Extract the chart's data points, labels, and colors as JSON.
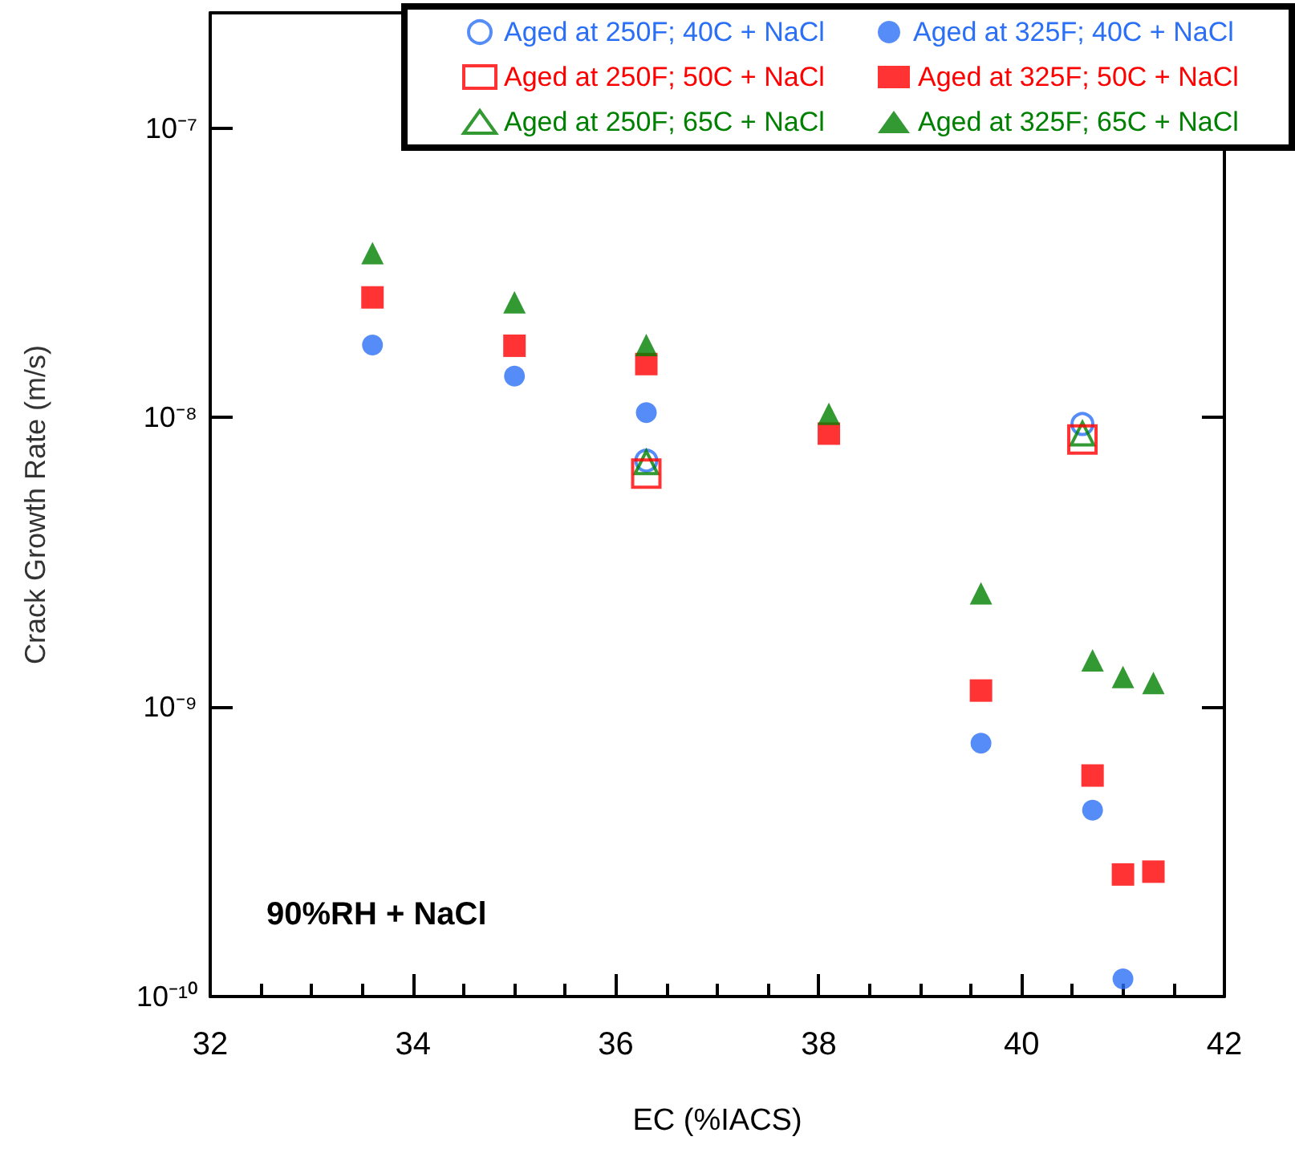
{
  "chart_data": {
    "type": "scatter",
    "xlabel": "EC (%IACS)",
    "ylabel": "Crack Growth Rate (m/s)",
    "annotations": [
      "90%RH + NaCl"
    ],
    "xlim": [
      32,
      42
    ],
    "xticks": [
      32,
      34,
      36,
      38,
      40,
      42
    ],
    "ylim": [
      1e-10,
      2.5e-07
    ],
    "yticks": [
      {
        "value": 1e-10,
        "label": "10⁻¹⁰"
      },
      {
        "value": 1e-09,
        "label": "10⁻⁹"
      },
      {
        "value": 1e-08,
        "label": "10⁻⁸"
      },
      {
        "value": 1e-07,
        "label": "10⁻⁷"
      }
    ],
    "log": "y",
    "grid": false,
    "legend": "top right",
    "series": [
      {
        "name": "Aged at 250F; 40C + NaCl",
        "color": "#2a6ff5",
        "marker": "circle",
        "x": [
          36.3,
          40.6
        ],
        "values": [
          7.1e-09,
          9.5e-09
        ]
      },
      {
        "name": "Aged at 325F; 40C + NaCl",
        "color": "#2a6ff5",
        "marker": "circle",
        "x": [
          33.6,
          35.0,
          36.3,
          39.6,
          40.7,
          41.0
        ],
        "values": [
          1.78e-08,
          1.39e-08,
          1.04e-08,
          7.5e-10,
          4.4e-10,
          1.15e-10
        ]
      },
      {
        "name": "Aged at 250F; 50C + NaCl",
        "color": "#ff0000",
        "marker": "square",
        "x": [
          36.3,
          40.6
        ],
        "values": [
          6.4e-09,
          8.4e-09
        ]
      },
      {
        "name": "Aged at 325F; 50C + NaCl",
        "color": "#ff0000",
        "marker": "square",
        "x": [
          33.6,
          35.0,
          36.3,
          38.1,
          39.6,
          40.7,
          41.0,
          41.3
        ],
        "values": [
          2.6e-08,
          1.77e-08,
          1.53e-08,
          8.8e-09,
          1.14e-09,
          5.8e-10,
          2.64e-10,
          2.7e-10
        ]
      },
      {
        "name": "Aged at 250F; 65C + NaCl",
        "color": "#008000",
        "marker": "triangle",
        "x": [
          36.3,
          40.6
        ],
        "values": [
          7e-09,
          8.8e-09
        ]
      },
      {
        "name": "Aged at 325F; 65C + NaCl",
        "color": "#008000",
        "marker": "triangle",
        "x": [
          33.6,
          35.0,
          36.3,
          38.1,
          39.6,
          40.7,
          41.0,
          41.3
        ],
        "values": [
          3.7e-08,
          2.5e-08,
          1.78e-08,
          1.03e-08,
          2.47e-09,
          1.45e-09,
          1.27e-09,
          1.21e-09
        ]
      }
    ]
  }
}
